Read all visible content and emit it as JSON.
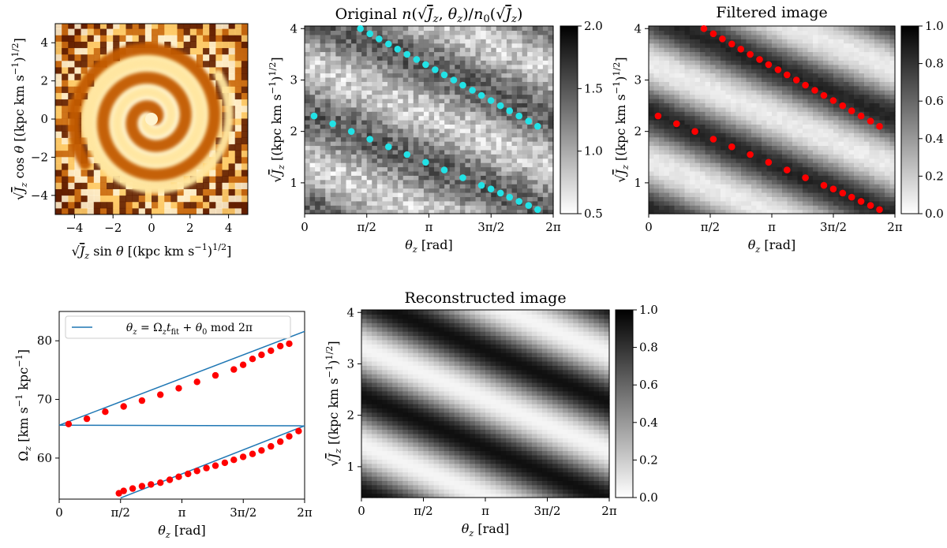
{
  "figure": {
    "domain_note": "",
    "colors": {
      "spiral_dark": "#2a0800",
      "spiral_mid": "#b85000",
      "spiral_light": "#fff4c8",
      "cyan_points": "#22e2e6",
      "red_points": "#ff0000",
      "fit_line": "#1f77b4"
    }
  },
  "chart_data": [
    {
      "id": "spiral",
      "type": "heatmap",
      "title": "",
      "xlabel": "√J_z sin θ [(kpc km s⁻¹)^1/2]",
      "ylabel": "√J_z cos θ [(kpc km s⁻¹)^1/2]",
      "xlim": [
        -5,
        5
      ],
      "ylim": [
        -5,
        5
      ],
      "xticks": [
        -4,
        -2,
        0,
        2,
        4
      ],
      "yticks": [
        -4,
        -2,
        0,
        2,
        4
      ],
      "xtick_labels": [
        "−4",
        "−2",
        "0",
        "2",
        "4"
      ],
      "ytick_labels": [
        "−4",
        "−2",
        "0",
        "2",
        "4"
      ],
      "colormap": "afmhot"
    },
    {
      "id": "original",
      "type": "heatmap",
      "title": "Original n(√J_z, θ_z)/n_0(√J_z)",
      "xlabel": "θ_z [rad]",
      "ylabel": "√J_z [(kpc km s⁻¹)^1/2]",
      "xlim": [
        0,
        6.2832
      ],
      "ylim": [
        0.4,
        4.05
      ],
      "xticks": [
        0,
        1.5708,
        3.1416,
        4.7124,
        6.2832
      ],
      "xtick_labels": [
        "0",
        "π/2",
        "π",
        "3π/2",
        "2π"
      ],
      "yticks": [
        1,
        2,
        3,
        4
      ],
      "ytick_labels": [
        "1",
        "2",
        "3",
        "4"
      ],
      "colorbar": {
        "range": [
          0.5,
          2.0
        ],
        "ticks": [
          0.5,
          1.0,
          1.5,
          2.0
        ],
        "tick_labels": [
          "0.5",
          "1.0",
          "1.5",
          "2.0"
        ]
      },
      "colormap": "gray_r",
      "points": {
        "color": "#22e2e6",
        "upper": {
          "x": [
            1.41,
            1.65,
            1.88,
            2.12,
            2.35,
            2.59,
            2.83,
            3.06,
            3.3,
            3.53,
            3.77,
            4.0,
            4.24,
            4.47,
            4.71,
            4.95,
            5.18,
            5.42,
            5.66,
            5.89
          ],
          "y": [
            4.0,
            3.9,
            3.8,
            3.7,
            3.6,
            3.5,
            3.4,
            3.3,
            3.2,
            3.1,
            3.0,
            2.9,
            2.8,
            2.7,
            2.6,
            2.5,
            2.4,
            2.3,
            2.2,
            2.1
          ]
        },
        "lower": {
          "x": [
            0.24,
            0.71,
            1.18,
            1.65,
            2.12,
            2.59,
            3.06,
            3.53,
            4.0,
            4.47,
            4.71,
            4.95,
            5.18,
            5.42,
            5.66,
            5.89
          ],
          "y": [
            2.3,
            2.15,
            2.0,
            1.85,
            1.7,
            1.55,
            1.4,
            1.25,
            1.1,
            0.95,
            0.88,
            0.8,
            0.72,
            0.64,
            0.56,
            0.48
          ]
        }
      }
    },
    {
      "id": "filtered",
      "type": "heatmap",
      "title": "Filtered image",
      "xlabel": "θ_z [rad]",
      "ylabel": "√J_z [(kpc km s⁻¹)^1/2]",
      "xlim": [
        0,
        6.2832
      ],
      "ylim": [
        0.4,
        4.05
      ],
      "xticks": [
        0,
        1.5708,
        3.1416,
        4.7124,
        6.2832
      ],
      "xtick_labels": [
        "0",
        "π/2",
        "π",
        "3π/2",
        "2π"
      ],
      "yticks": [
        1,
        2,
        3,
        4
      ],
      "ytick_labels": [
        "1",
        "2",
        "3",
        "4"
      ],
      "colorbar": {
        "range": [
          0.0,
          1.0
        ],
        "ticks": [
          0.0,
          0.2,
          0.4,
          0.6,
          0.8,
          1.0
        ],
        "tick_labels": [
          "0.0",
          "0.2",
          "0.4",
          "0.6",
          "0.8",
          "1.0"
        ]
      },
      "colormap": "gray_r",
      "points": {
        "color": "#ff0000",
        "upper": {
          "x": [
            1.41,
            1.65,
            1.88,
            2.12,
            2.35,
            2.59,
            2.83,
            3.06,
            3.3,
            3.53,
            3.77,
            4.0,
            4.24,
            4.47,
            4.71,
            4.95,
            5.18,
            5.42,
            5.66,
            5.89
          ],
          "y": [
            4.0,
            3.9,
            3.8,
            3.7,
            3.6,
            3.5,
            3.4,
            3.3,
            3.2,
            3.1,
            3.0,
            2.9,
            2.8,
            2.7,
            2.6,
            2.5,
            2.4,
            2.3,
            2.2,
            2.1
          ]
        },
        "lower": {
          "x": [
            0.24,
            0.71,
            1.18,
            1.65,
            2.12,
            2.59,
            3.06,
            3.53,
            4.0,
            4.47,
            4.71,
            4.95,
            5.18,
            5.42,
            5.66,
            5.89
          ],
          "y": [
            2.3,
            2.15,
            2.0,
            1.85,
            1.7,
            1.55,
            1.4,
            1.25,
            1.1,
            0.95,
            0.88,
            0.8,
            0.72,
            0.64,
            0.56,
            0.48
          ]
        }
      }
    },
    {
      "id": "omega",
      "type": "scatter",
      "title": "",
      "xlabel": "θ_z [rad]",
      "ylabel": "Ω_z [km s⁻¹ kpc⁻¹]",
      "xlim": [
        0,
        6.2832
      ],
      "ylim": [
        53,
        85
      ],
      "xticks": [
        0,
        1.5708,
        3.1416,
        4.7124,
        6.2832
      ],
      "xtick_labels": [
        "0",
        "π/2",
        "π",
        "3π/2",
        "2π"
      ],
      "yticks": [
        60,
        70,
        80
      ],
      "ytick_labels": [
        "60",
        "70",
        "80"
      ],
      "legend": {
        "label": "θ_z = Ω_z t_fit + θ_0 mod 2π",
        "position": "top-left"
      },
      "fit_lines": [
        {
          "x": [
            0.0,
            6.2832
          ],
          "y": [
            65.6,
            81.6
          ]
        },
        {
          "x": [
            0.0,
            6.2832
          ],
          "y": [
            65.6,
            65.5
          ]
        },
        {
          "x": [
            1.5708,
            6.2832
          ],
          "y": [
            53.2,
            65.5
          ]
        }
      ],
      "points": {
        "color": "#ff0000",
        "upper": {
          "x": [
            0.24,
            0.71,
            1.18,
            1.65,
            2.12,
            2.59,
            3.06,
            3.53,
            4.0,
            4.47,
            4.71,
            4.95,
            5.18,
            5.42,
            5.66,
            5.89
          ],
          "y": [
            65.8,
            66.7,
            67.9,
            68.8,
            69.8,
            70.8,
            71.9,
            73.0,
            74.1,
            75.1,
            75.9,
            76.9,
            77.6,
            78.3,
            79.1,
            79.5
          ]
        },
        "lower": {
          "x": [
            1.53,
            1.65,
            1.88,
            2.12,
            2.35,
            2.59,
            2.83,
            3.06,
            3.3,
            3.53,
            3.77,
            4.0,
            4.24,
            4.47,
            4.71,
            4.95,
            5.18,
            5.42,
            5.66,
            5.89,
            6.13
          ],
          "y": [
            54.0,
            54.4,
            54.8,
            55.2,
            55.5,
            55.8,
            56.3,
            56.8,
            57.3,
            57.8,
            58.3,
            58.7,
            59.2,
            59.7,
            60.2,
            60.7,
            61.3,
            62.0,
            62.8,
            63.7,
            64.6
          ]
        }
      }
    },
    {
      "id": "reconstructed",
      "type": "heatmap",
      "title": "Reconstructed image",
      "xlabel": "θ_z [rad]",
      "ylabel": "√J_z [(kpc km s⁻¹)^1/2]",
      "xlim": [
        0,
        6.2832
      ],
      "ylim": [
        0.4,
        4.05
      ],
      "xticks": [
        0,
        1.5708,
        3.1416,
        4.7124,
        6.2832
      ],
      "xtick_labels": [
        "0",
        "π/2",
        "π",
        "3π/2",
        "2π"
      ],
      "yticks": [
        1,
        2,
        3,
        4
      ],
      "ytick_labels": [
        "1",
        "2",
        "3",
        "4"
      ],
      "colorbar": {
        "range": [
          0.0,
          1.0
        ],
        "ticks": [
          0.0,
          0.2,
          0.4,
          0.6,
          0.8,
          1.0
        ],
        "tick_labels": [
          "0.0",
          "0.2",
          "0.4",
          "0.6",
          "0.8",
          "1.0"
        ]
      },
      "colormap": "gray_r"
    }
  ]
}
